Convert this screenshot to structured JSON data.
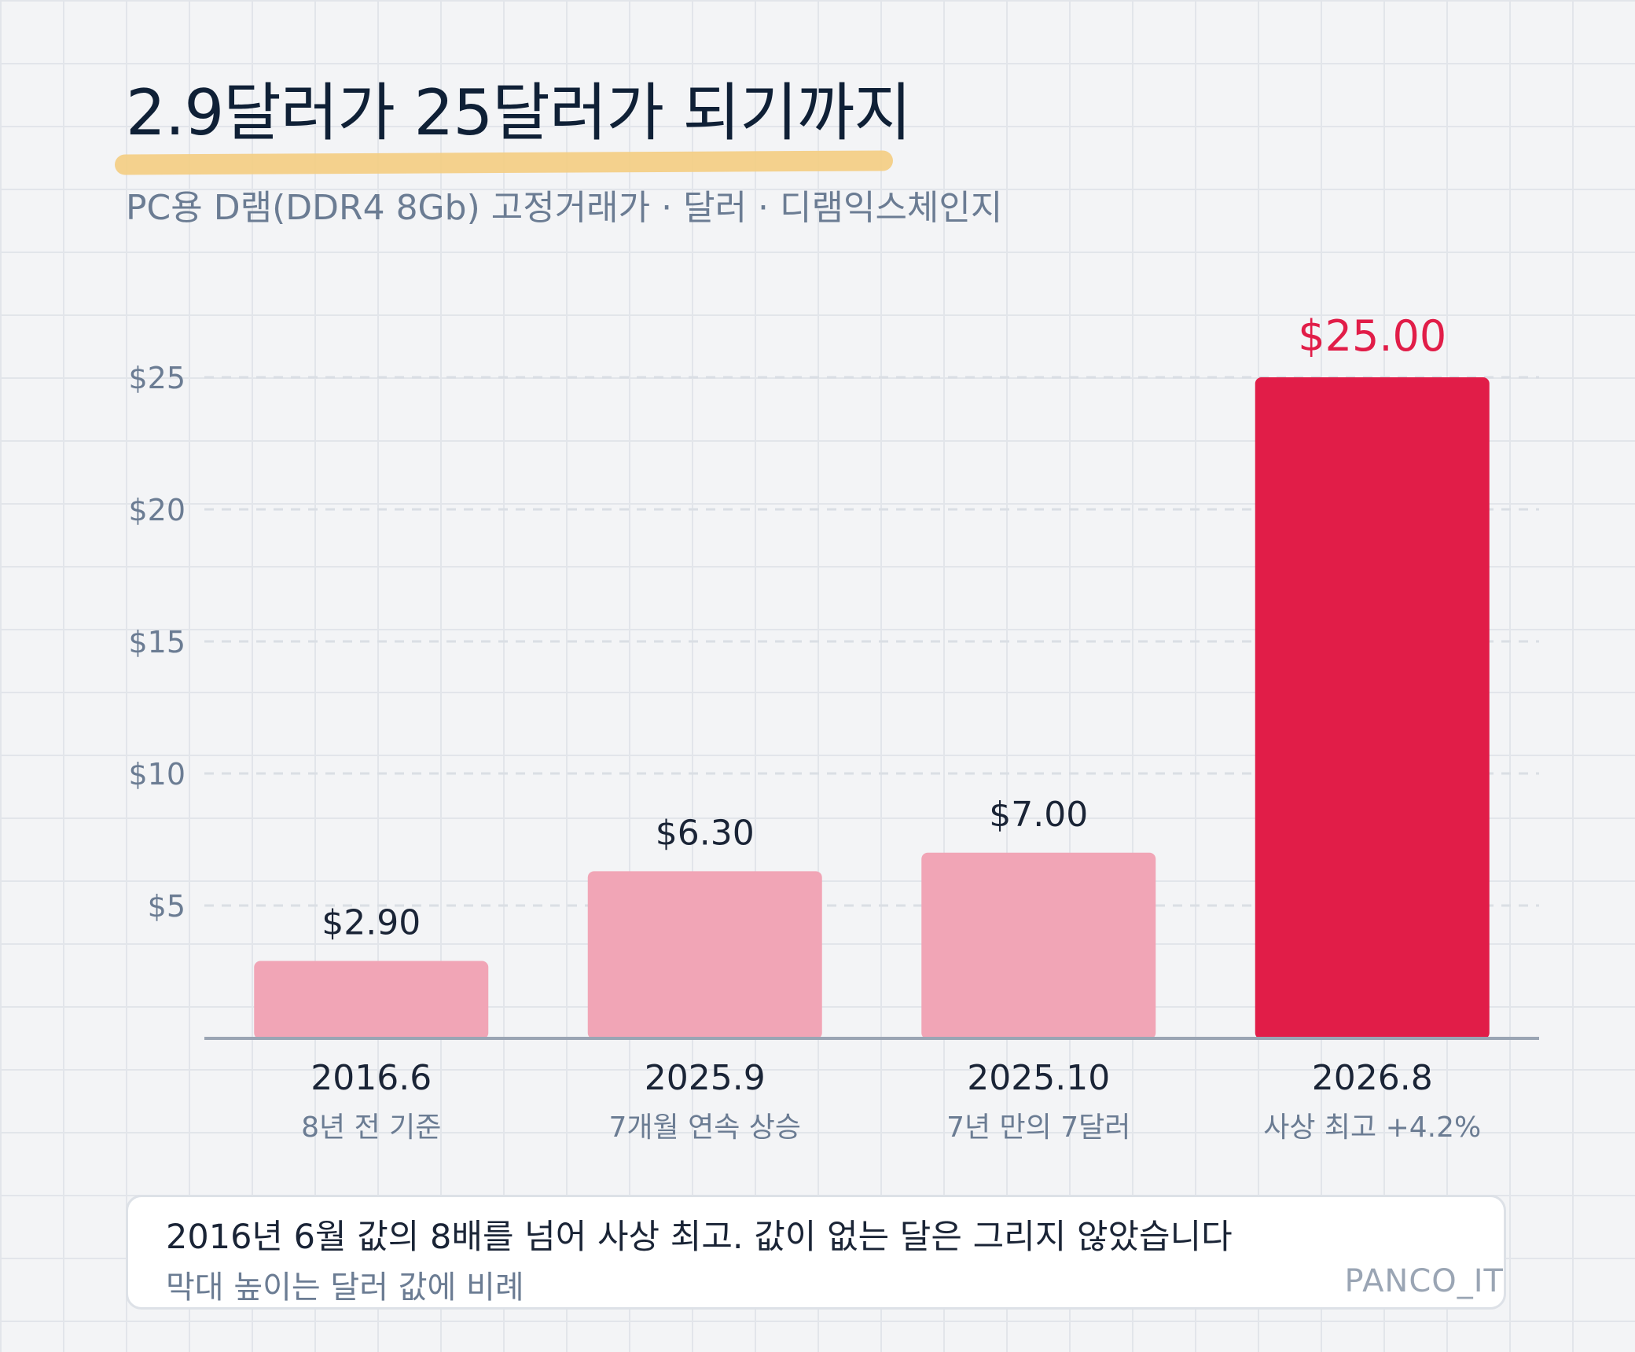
{
  "title": "2.9달러가 25달러가 되기까지",
  "subtitle": "PC용 D램(DDR4 8Gb) 고정거래가 · 달러 · 디램익스체인지",
  "colors": {
    "background": "#f3f4f6",
    "bar_normal": "#f1a5b6",
    "bar_highlight": "#e11d48",
    "highlight_text": "#e11d48",
    "underline": "#f4cd82",
    "axis_text": "#6b7c93"
  },
  "chart_data": {
    "type": "bar",
    "categories": [
      "2016.6",
      "2025.9",
      "2025.10",
      "2026.8"
    ],
    "sublabels": [
      "8년 전 기준",
      "7개월 연속 상승",
      "7년 만의 7달러",
      "사상 최고 +4.2%"
    ],
    "values": [
      2.9,
      6.3,
      7.0,
      25.0
    ],
    "value_labels": [
      "$2.90",
      "$6.30",
      "$7.00",
      "$25.00"
    ],
    "highlight_index": 3,
    "yticks": [
      5,
      10,
      15,
      20,
      25
    ],
    "ytick_labels": [
      "$5",
      "$10",
      "$15",
      "$20",
      "$25"
    ],
    "ylim": [
      0,
      25
    ],
    "grid": "dashed horizontal"
  },
  "footer": {
    "note": "2016년 6월 값의 8배를 넘어 사상 최고. 값이 없는 달은 그리지 않았습니다",
    "sub": "막대 높이는 달러 값에 비례",
    "brand": "PANCO_IT"
  }
}
